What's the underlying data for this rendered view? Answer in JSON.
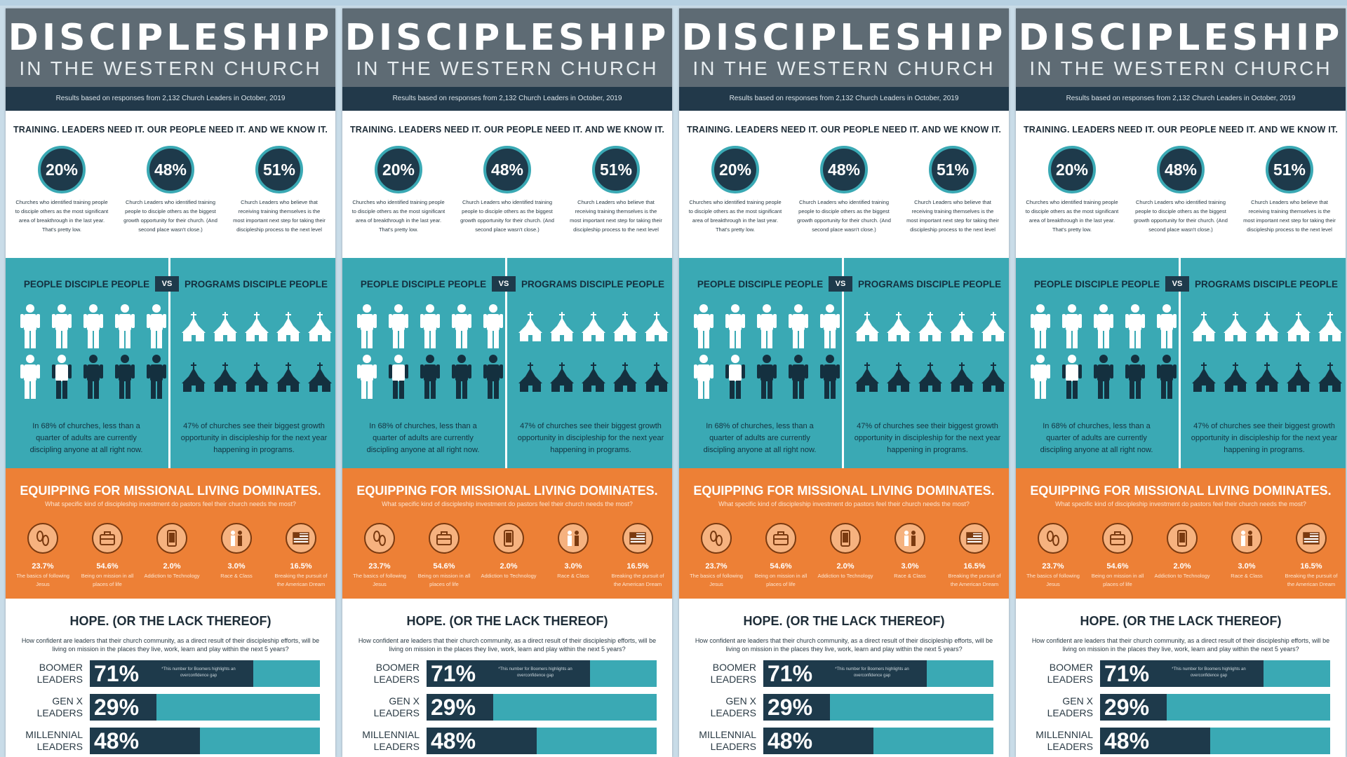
{
  "header": {
    "title": "DISCIPLESHIP",
    "subtitle": "IN THE WESTERN CHURCH",
    "results": "Results based on responses from 2,132 Church Leaders in October, 2019"
  },
  "training": {
    "heading": "TRAINING. LEADERS NEED IT. OUR PEOPLE NEED IT. AND WE KNOW IT.",
    "stats": [
      {
        "value": "20%",
        "desc": "Churches who identified training people to disciple others as the most significant area of breakthrough in the last year. That's pretty low."
      },
      {
        "value": "48%",
        "desc": "Church Leaders who identified training people to disciple others as the biggest growth opportunity for their church. (And second place wasn't close.)"
      },
      {
        "value": "51%",
        "desc": "Church Leaders who believe that receiving training themselves is the most important next step for taking their discipleship process to the next level"
      }
    ]
  },
  "versus": {
    "left_heading": "PEOPLE DISCIPLE PEOPLE",
    "vs": "VS",
    "right_heading": "PROGRAMS DISCIPLE PEOPLE",
    "left_caption": "In 68% of churches, less than a quarter of adults are currently discipling anyone at all right now.",
    "right_caption": "47% of churches see their biggest growth opportunity in discipleship for the next year happening in programs.",
    "people_highlight_fraction": 0.68,
    "programs_highlight_fraction": 0.47
  },
  "equipping": {
    "heading": "EQUIPPING FOR MISSIONAL LIVING DOMINATES.",
    "subheading": "What specific kind of discipleship investment do pastors feel their church needs the most?",
    "items": [
      {
        "icon": "footprints-icon",
        "pct": "23.7%",
        "label": "The basics of following Jesus"
      },
      {
        "icon": "briefcase-icon",
        "pct": "54.6%",
        "label": "Being on mission in all places of life"
      },
      {
        "icon": "phone-icon",
        "pct": "2.0%",
        "label": "Addiction to Technology"
      },
      {
        "icon": "race-class-icon",
        "pct": "3.0%",
        "label": "Race & Class"
      },
      {
        "icon": "flag-icon",
        "pct": "16.5%",
        "label": "Breaking the pursuit of the American Dream"
      }
    ]
  },
  "hope": {
    "heading": "HOPE. (OR THE LACK THEREOF)",
    "question": "How confident are leaders that their church community, as a direct result of their discipleship efforts, will be living on mission in the places they live, work, learn and play within the next 5 years?",
    "bars": [
      {
        "label": "BOOMER LEADERS",
        "value": 71,
        "text": "71%",
        "note": "*This number for Boomers highlights an overconfidence gap"
      },
      {
        "label": "GEN X LEADERS",
        "value": 29,
        "text": "29%",
        "note": ""
      },
      {
        "label": "MILLENNIAL LEADERS",
        "value": 48,
        "text": "48%",
        "note": ""
      }
    ]
  },
  "colors": {
    "header": "#5e6b74",
    "navy": "#1e3a4b",
    "teal": "#3aa9b4",
    "orange": "#ed8036"
  }
}
